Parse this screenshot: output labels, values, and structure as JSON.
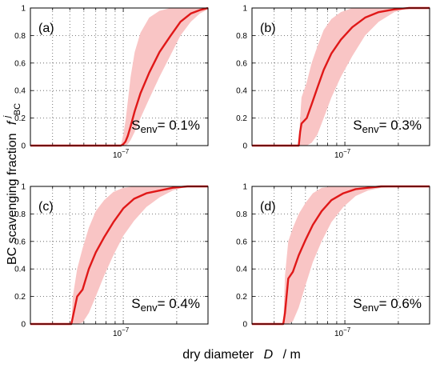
{
  "figure": {
    "ylabel_main": "BC scavenging fraction",
    "ylabel_symbol": "f",
    "ylabel_superscript": "j",
    "ylabel_subscript": "BC",
    "xlabel_main": "dry diameter",
    "xlabel_symbol": "D",
    "xlabel_unit": "/ m"
  },
  "chart_data": [
    {
      "type": "line",
      "panel_label": "(a)",
      "annotation": {
        "symbol": "S",
        "subscript": "env",
        "value": "= 0.1%"
      },
      "xscale": "log",
      "xlim": [
        3e-08,
        3e-07
      ],
      "ylim": [
        0,
        1
      ],
      "yticks": [
        0,
        0.2,
        0.4,
        0.6,
        0.8,
        1
      ],
      "yticklabels": [
        "0",
        "0.2",
        "0.4",
        "0.6",
        "0.8",
        "1"
      ],
      "xtick_label": {
        "base": "10",
        "exp": "−7",
        "at": 1e-07
      },
      "grid": true,
      "series_x": [
        3e-08,
        9.7e-08,
        1e-07,
        1.03e-07,
        1.06e-07,
        1.1e-07,
        1.16e-07,
        1.25e-07,
        1.4e-07,
        1.6e-07,
        1.85e-07,
        2.1e-07,
        2.4e-07,
        2.7e-07,
        3e-07
      ],
      "mean": [
        0,
        0,
        0.01,
        0.03,
        0.07,
        0.14,
        0.25,
        0.38,
        0.53,
        0.68,
        0.8,
        0.9,
        0.96,
        0.985,
        1.0
      ],
      "lower": [
        0,
        0,
        0,
        0,
        0.01,
        0.04,
        0.1,
        0.2,
        0.34,
        0.5,
        0.66,
        0.8,
        0.9,
        0.96,
        0.99
      ],
      "upper": [
        0,
        0,
        0.08,
        0.18,
        0.32,
        0.5,
        0.68,
        0.82,
        0.93,
        0.98,
        1.0,
        1.0,
        1.0,
        1.0,
        1.0
      ]
    },
    {
      "type": "line",
      "panel_label": "(b)",
      "annotation": {
        "symbol": "S",
        "subscript": "env",
        "value": "= 0.3%"
      },
      "xscale": "log",
      "xlim": [
        3e-08,
        3e-07
      ],
      "ylim": [
        0,
        1
      ],
      "yticks": [
        0,
        0.2,
        0.4,
        0.6,
        0.8,
        1
      ],
      "yticklabels": [
        "0",
        "0.2",
        "0.4",
        "0.6",
        "0.8",
        "1"
      ],
      "xtick_label": {
        "base": "10",
        "exp": "−7",
        "at": 1e-07
      },
      "grid": true,
      "series_x": [
        3e-08,
        5.5e-08,
        5.6e-08,
        5.7e-08,
        6.1e-08,
        6.5e-08,
        7e-08,
        7.6e-08,
        8.4e-08,
        9.5e-08,
        1.1e-07,
        1.3e-07,
        1.55e-07,
        1.9e-07,
        2.3e-07,
        3e-07
      ],
      "mean": [
        0,
        0,
        0.1,
        0.16,
        0.2,
        0.3,
        0.42,
        0.55,
        0.67,
        0.77,
        0.86,
        0.93,
        0.97,
        0.99,
        1.0,
        1.0
      ],
      "lower": [
        0,
        0,
        0,
        0,
        0,
        0.02,
        0.08,
        0.2,
        0.35,
        0.5,
        0.65,
        0.8,
        0.9,
        0.97,
        1.0,
        1.0
      ],
      "upper": [
        0,
        0,
        0.2,
        0.35,
        0.46,
        0.6,
        0.72,
        0.84,
        0.92,
        0.97,
        1.0,
        1.0,
        1.0,
        1.0,
        1.0,
        1.0
      ]
    },
    {
      "type": "line",
      "panel_label": "(c)",
      "annotation": {
        "symbol": "S",
        "subscript": "env",
        "value": "= 0.4%"
      },
      "xscale": "log",
      "xlim": [
        3e-08,
        3e-07
      ],
      "ylim": [
        0,
        1
      ],
      "yticks": [
        0,
        0.2,
        0.4,
        0.6,
        0.8,
        1
      ],
      "yticklabels": [
        "0",
        "0.2",
        "0.4",
        "0.6",
        "0.8",
        "1"
      ],
      "xtick_label": {
        "base": "10",
        "exp": "−7",
        "at": 1e-07
      },
      "grid": true,
      "series_x": [
        3e-08,
        5.1e-08,
        5.2e-08,
        5.5e-08,
        5.9e-08,
        6.4e-08,
        7e-08,
        7.8e-08,
        8.8e-08,
        1e-07,
        1.15e-07,
        1.35e-07,
        1.6e-07,
        1.9e-07,
        2.3e-07,
        3e-07
      ],
      "mean": [
        0,
        0,
        0.05,
        0.2,
        0.25,
        0.4,
        0.52,
        0.63,
        0.74,
        0.84,
        0.91,
        0.95,
        0.97,
        0.99,
        1.0,
        1.0
      ],
      "lower": [
        0,
        0,
        0,
        0,
        0.01,
        0.08,
        0.2,
        0.35,
        0.5,
        0.64,
        0.75,
        0.85,
        0.92,
        0.97,
        1.0,
        1.0
      ],
      "upper": [
        0,
        0,
        0.2,
        0.4,
        0.55,
        0.7,
        0.82,
        0.9,
        0.96,
        0.99,
        1.0,
        1.0,
        1.0,
        1.0,
        1.0,
        1.0
      ]
    },
    {
      "type": "line",
      "panel_label": "(d)",
      "annotation": {
        "symbol": "S",
        "subscript": "env",
        "value": "= 0.6%"
      },
      "xscale": "log",
      "xlim": [
        3e-08,
        3e-07
      ],
      "ylim": [
        0,
        1
      ],
      "yticks": [
        0,
        0.2,
        0.4,
        0.6,
        0.8,
        1
      ],
      "yticklabels": [
        "0",
        "0.2",
        "0.4",
        "0.6",
        "0.8",
        "1"
      ],
      "xtick_label": {
        "base": "10",
        "exp": "−7",
        "at": 1e-07
      },
      "grid": true,
      "series_x": [
        3e-08,
        4.5e-08,
        4.6e-08,
        4.8e-08,
        5.1e-08,
        5.5e-08,
        6e-08,
        6.6e-08,
        7.4e-08,
        8.4e-08,
        9.8e-08,
        1.15e-07,
        1.35e-07,
        1.6e-07,
        2e-07,
        3e-07
      ],
      "mean": [
        0,
        0,
        0.08,
        0.33,
        0.38,
        0.5,
        0.61,
        0.72,
        0.82,
        0.9,
        0.95,
        0.98,
        0.99,
        1.0,
        1.0,
        1.0
      ],
      "lower": [
        0,
        0,
        0,
        0,
        0.02,
        0.12,
        0.28,
        0.45,
        0.6,
        0.74,
        0.85,
        0.93,
        0.97,
        0.99,
        1.0,
        1.0
      ],
      "upper": [
        0,
        0,
        0.35,
        0.6,
        0.7,
        0.8,
        0.88,
        0.95,
        0.99,
        1.0,
        1.0,
        1.0,
        1.0,
        1.0,
        1.0,
        1.0
      ]
    }
  ]
}
